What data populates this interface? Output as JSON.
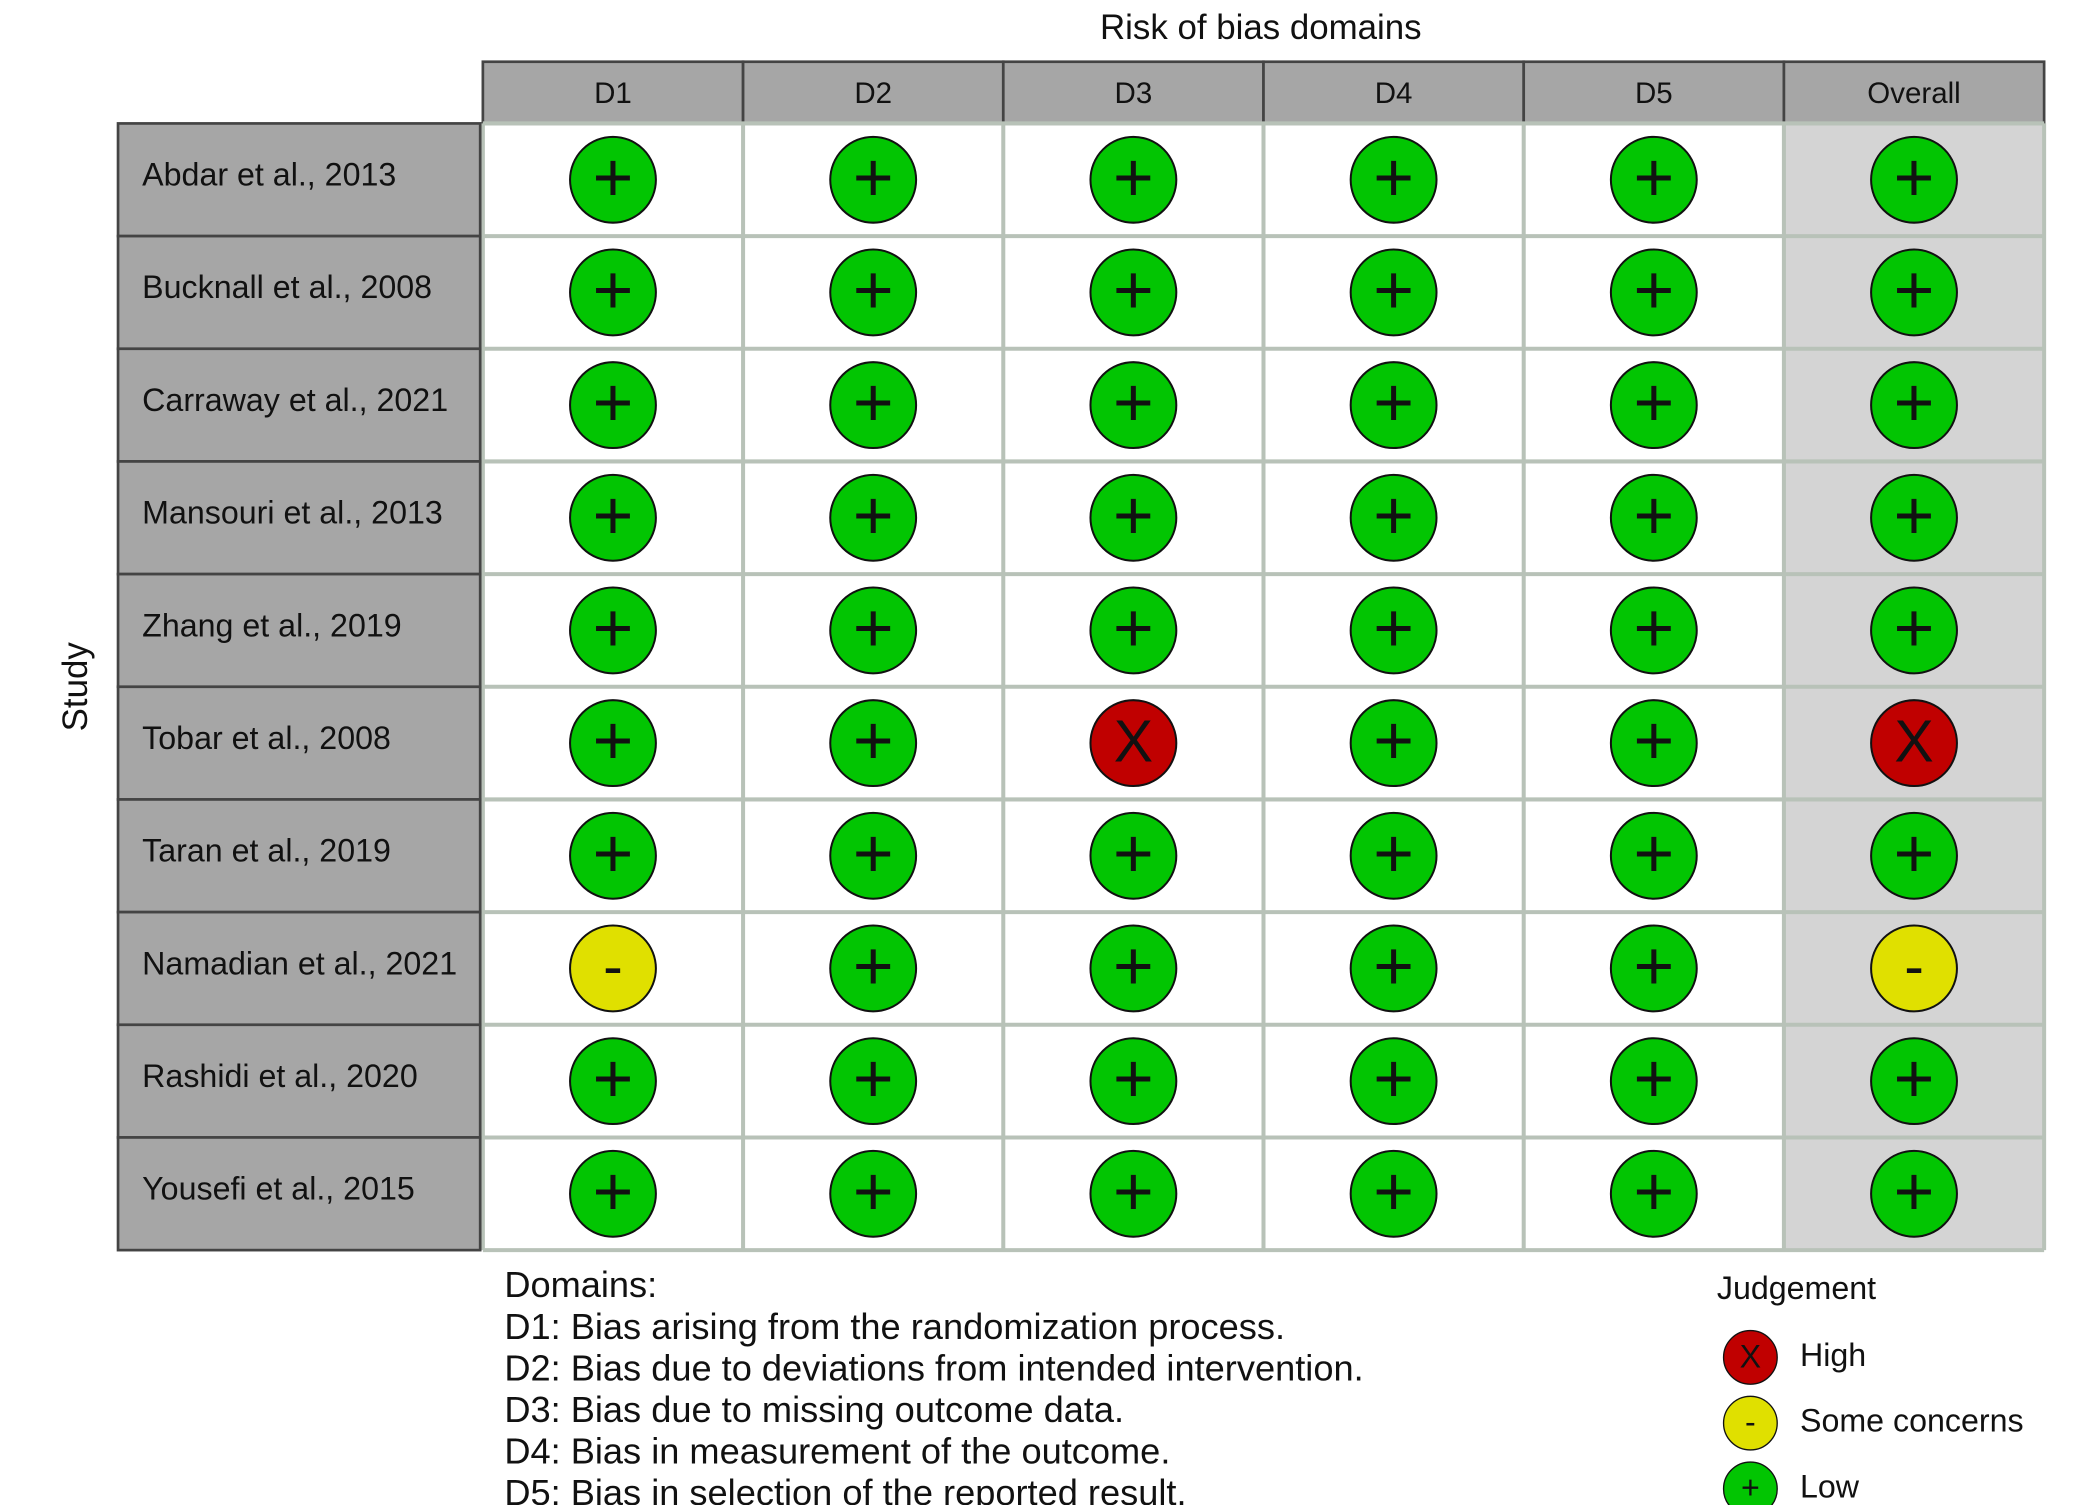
{
  "title": "Risk of bias domains",
  "y_label": "Study",
  "columns": [
    "D1",
    "D2",
    "D3",
    "D4",
    "D5",
    "Overall"
  ],
  "rows": [
    {
      "study": "Abdar et al., 2013",
      "judgements": [
        "+",
        "+",
        "+",
        "+",
        "+",
        "+"
      ]
    },
    {
      "study": "Bucknall et al., 2008",
      "judgements": [
        "+",
        "+",
        "+",
        "+",
        "+",
        "+"
      ]
    },
    {
      "study": "Carraway et al., 2021",
      "judgements": [
        "+",
        "+",
        "+",
        "+",
        "+",
        "+"
      ]
    },
    {
      "study": "Mansouri et al., 2013",
      "judgements": [
        "+",
        "+",
        "+",
        "+",
        "+",
        "+"
      ]
    },
    {
      "study": "Zhang et al., 2019",
      "judgements": [
        "+",
        "+",
        "+",
        "+",
        "+",
        "+"
      ]
    },
    {
      "study": "Tobar et al., 2008",
      "judgements": [
        "+",
        "+",
        "X",
        "+",
        "+",
        "X"
      ]
    },
    {
      "study": "Taran et al., 2019",
      "judgements": [
        "+",
        "+",
        "+",
        "+",
        "+",
        "+"
      ]
    },
    {
      "study": "Namadian et al., 2021",
      "judgements": [
        "-",
        "+",
        "+",
        "+",
        "+",
        "-"
      ]
    },
    {
      "study": "Rashidi et al., 2020",
      "judgements": [
        "+",
        "+",
        "+",
        "+",
        "+",
        "+"
      ]
    },
    {
      "study": "Yousefi et al., 2015",
      "judgements": [
        "+",
        "+",
        "+",
        "+",
        "+",
        "+"
      ]
    }
  ],
  "domains_title": "Domains:",
  "domains": [
    "D1: Bias arising from the randomization process.",
    "D2: Bias due to deviations from intended intervention.",
    "D3: Bias due to missing outcome data.",
    "D4: Bias in measurement of the outcome.",
    "D5: Bias in selection of the reported result."
  ],
  "legend": {
    "title": "Judgement",
    "items": [
      {
        "symbol": "X",
        "label": "High",
        "color": "#c00000"
      },
      {
        "symbol": "-",
        "label": "Some concerns",
        "color": "#e0e000"
      },
      {
        "symbol": "+",
        "label": "Low",
        "color": "#02c502"
      }
    ]
  }
}
